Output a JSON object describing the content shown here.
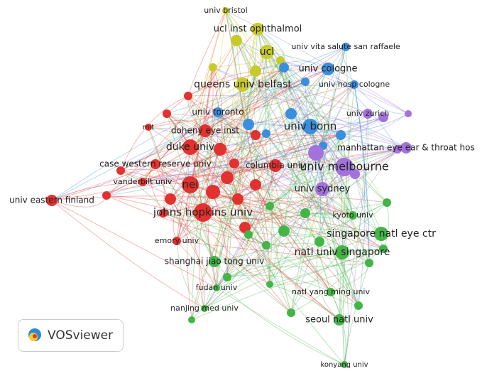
{
  "clusters": [
    {
      "color": "#c9c92a",
      "nodes": [
        "univ bristol",
        "ucl inst ophthalmol",
        "ucl",
        "queens univ belfast"
      ]
    },
    {
      "color": "#3a8ede",
      "nodes": [
        "univ vita salute san raffaele",
        "univ cologne",
        "univ hosp cologne",
        "univ toronto",
        "univ bonn"
      ]
    },
    {
      "color": "#a372dd",
      "nodes": [
        "univ zurich",
        "manhattan eye ear & throat hos",
        "univ melbourne",
        "univ sydney"
      ]
    },
    {
      "color": "#e2312f",
      "nodes": [
        "mit",
        "doheny eye inst",
        "duke univ",
        "case western reserve univ",
        "columbia univ",
        "vanderbilt univ",
        "nei",
        "univ eastern finland",
        "johns hopkins univ",
        "emory univ"
      ]
    },
    {
      "color": "#43b446",
      "nodes": [
        "kyoto univ",
        "singapore natl eye ctr",
        "natl univ singapore",
        "shanghai jiao tong univ",
        "fudan univ",
        "natl yang ming univ",
        "nanjing med univ",
        "seoul natl univ",
        "konyang univ"
      ]
    }
  ],
  "logo": "VOSviewer"
}
